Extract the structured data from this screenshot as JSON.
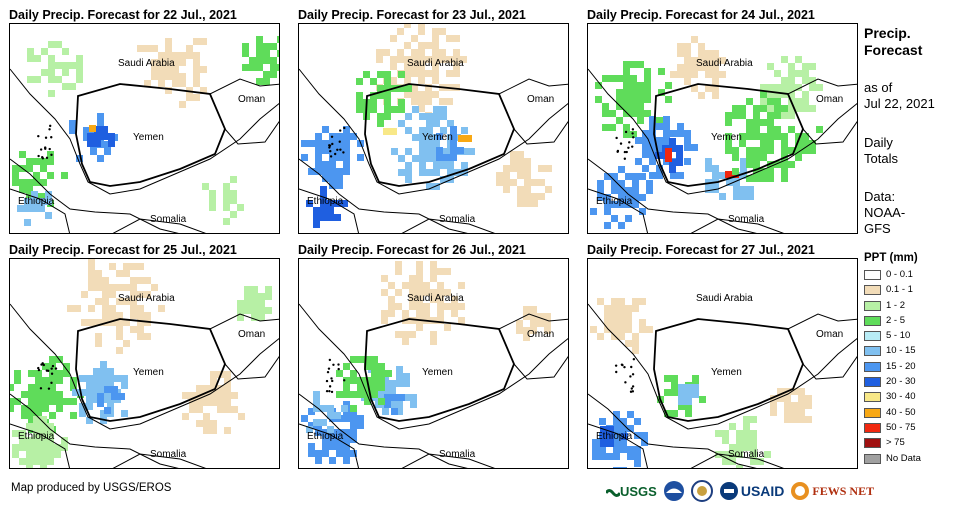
{
  "panels": [
    {
      "title": "Daily Precip. Forecast for 22 Jul., 2021"
    },
    {
      "title": "Daily Precip. Forecast for 23 Jul., 2021"
    },
    {
      "title": "Daily Precip. Forecast for 24 Jul., 2021"
    },
    {
      "title": "Daily Precip. Forecast for 25 Jul., 2021"
    },
    {
      "title": "Daily Precip. Forecast for 26 Jul., 2021"
    },
    {
      "title": "Daily Precip. Forecast for 27 Jul., 2021"
    }
  ],
  "map_labels": {
    "saudi": "Saudi Arabia",
    "oman": "Oman",
    "yemen": "Yemen",
    "ethiopia": "Ethiopia",
    "somalia": "Somalia"
  },
  "side": {
    "title_line1": "Precip.",
    "title_line2": "Forecast",
    "asof_line1": "as of",
    "asof_line2": "Jul 22, 2021",
    "daily_line1": "Daily",
    "daily_line2": "Totals",
    "data_line1": "Data:",
    "data_line2": "NOAA-",
    "data_line3": "GFS"
  },
  "legend": {
    "title": "PPT (mm)",
    "items": [
      {
        "label": "0 - 0.1",
        "color": "#ffffff"
      },
      {
        "label": "0.1 - 1",
        "color": "#f2dcb8"
      },
      {
        "label": "1 - 2",
        "color": "#b7f0a5"
      },
      {
        "label": "2 - 5",
        "color": "#5fdc5a"
      },
      {
        "label": "5 - 10",
        "color": "#b8ecf6"
      },
      {
        "label": "10 - 15",
        "color": "#80c0f0"
      },
      {
        "label": "15 - 20",
        "color": "#4c96f0"
      },
      {
        "label": "20 - 30",
        "color": "#1f5fe0"
      },
      {
        "label": "30 - 40",
        "color": "#f8e888"
      },
      {
        "label": "40 - 50",
        "color": "#f8a814"
      },
      {
        "label": "50 - 75",
        "color": "#f02810"
      },
      {
        "label": "> 75",
        "color": "#a01010"
      },
      {
        "label": "No Data",
        "color": "#a0a0a0"
      }
    ]
  },
  "credit": "Map produced by USGS/EROS",
  "logos": {
    "usgs": "USGS",
    "usaid": "USAID",
    "fewsnet": "FEWS NET"
  },
  "colors": {
    "border": "#000000",
    "sand": "#f2dcb8",
    "lightgreen": "#b7f0a5",
    "green": "#5fdc5a",
    "cyan": "#b8ecf6",
    "lightblue": "#80c0f0",
    "blue": "#4c96f0",
    "darkblue": "#1f5fe0",
    "yellow": "#f8e888",
    "orange": "#f8a814",
    "red": "#f02810"
  }
}
